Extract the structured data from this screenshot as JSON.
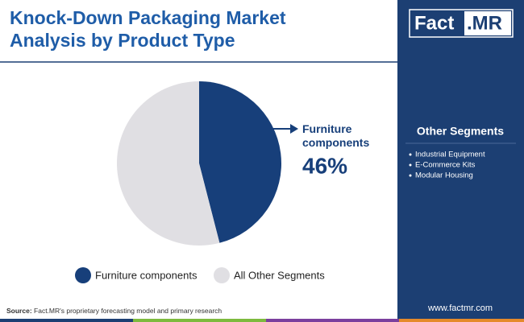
{
  "chart_data": {
    "type": "pie",
    "title": "Knock-Down Packaging Market Analysis by Product Type",
    "categories": [
      "Furniture components",
      "All Other Segments"
    ],
    "values": [
      46,
      54
    ],
    "value_labels": [
      "46%",
      null
    ],
    "colors": [
      "#173f7a",
      "#e0dfe3"
    ]
  },
  "logo": {
    "main": "Fact",
    "suffix": ".MR"
  },
  "sidebar": {
    "title": "Other Segments",
    "items": [
      "Industrial Equipment",
      "E-Commerce Kits",
      "Modular Housing"
    ]
  },
  "source": {
    "label": "Source:",
    "text": "Fact.MR's proprietary forecasting model and primary research"
  },
  "website": "www.factmr.com"
}
